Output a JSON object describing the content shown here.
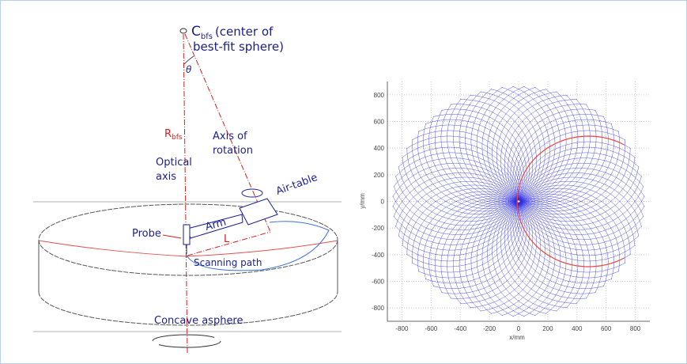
{
  "diagram": {
    "center_label": "C",
    "center_sub": "bfs",
    "center_text_1": "(center of",
    "center_text_2": "best-fit sphere)",
    "theta": "θ",
    "radius_label": "R",
    "radius_sub": "bfs",
    "axis_rotation_1": "Axis of",
    "axis_rotation_2": "rotation",
    "optical_axis_1": "Optical",
    "optical_axis_2": "axis",
    "air_table": "Air-table",
    "arm": "Arm",
    "probe": "Probe",
    "length": "L",
    "scanning_path": "Scanning path",
    "asphere": "Concave asphere",
    "colors": {
      "label": "#1b1f8a",
      "axis": "#d42020",
      "path": "#3a6fd8"
    }
  },
  "chart_data": {
    "type": "line",
    "description_kind": "scan-path plot",
    "xlabel": "x/mm",
    "ylabel": "y/mm",
    "xlim": [
      -900,
      900
    ],
    "ylim": [
      -900,
      900
    ],
    "xticks": [
      -800,
      -600,
      -400,
      -200,
      0,
      200,
      400,
      600,
      800
    ],
    "yticks": [
      800,
      600,
      400,
      200,
      0,
      -200,
      -400,
      -600,
      -800
    ],
    "grid": true,
    "series": [
      {
        "color": "#2a2ae0",
        "shape": "arcs",
        "arc_center_offset": 480,
        "arc_radius": 490,
        "count": 72,
        "boundary_radius": 870
      },
      {
        "color": "#f04040",
        "shape": "single-arc",
        "arc_center": [
          480,
          0
        ],
        "arc_radius": 490
      }
    ]
  }
}
